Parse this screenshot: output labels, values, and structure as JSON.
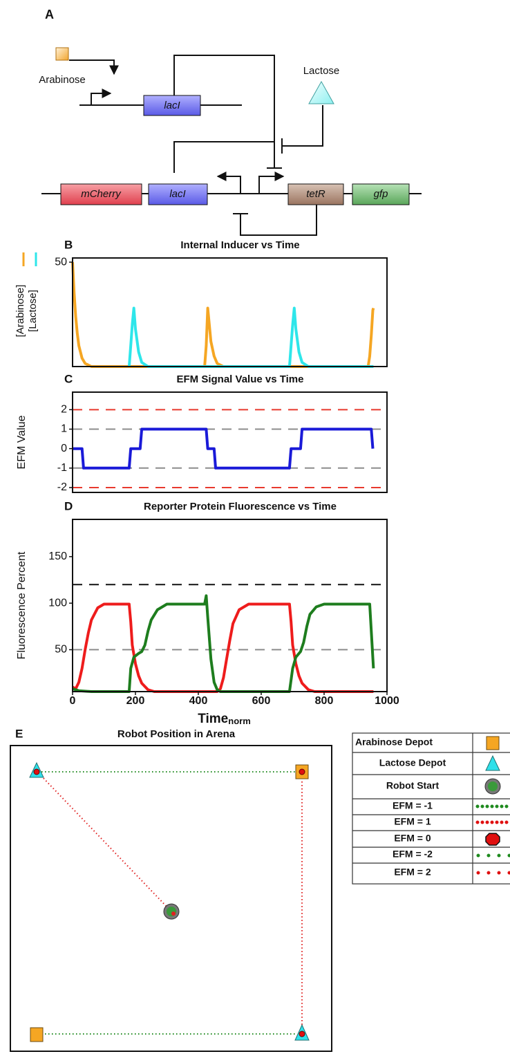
{
  "diagram": {
    "panel": "A",
    "arabinose": "Arabinose",
    "lactose": "Lactose",
    "genes_top": [
      "lacI"
    ],
    "genes_bottom": [
      "mCherry",
      "lacI",
      "tetR",
      "gfp"
    ]
  },
  "chart_data": [
    {
      "type": "line",
      "panel": "B",
      "title": "Internal Inducer vs Time",
      "xlim": [
        0,
        1000
      ],
      "ylim": [
        0,
        52
      ],
      "yticks": [
        50
      ],
      "legend": "left",
      "series": [
        {
          "name": "[Arabinose]",
          "color": "#f5a623",
          "x": [
            0,
            5,
            10,
            15,
            20,
            30,
            40,
            60,
            420,
            425,
            430,
            435,
            440,
            450,
            460,
            480,
            940,
            945,
            950,
            955,
            957
          ],
          "values": [
            50,
            35,
            24,
            16,
            10,
            4,
            1.5,
            0,
            0,
            10,
            28,
            20,
            12,
            5,
            1.5,
            0,
            0,
            5,
            15,
            27,
            28
          ]
        },
        {
          "name": "[Lactose]",
          "color": "#2ee6ea",
          "x": [
            180,
            185,
            190,
            195,
            200,
            210,
            220,
            240,
            690,
            695,
            700,
            705,
            710,
            720,
            730,
            750,
            957
          ],
          "values": [
            0,
            10,
            20,
            28,
            18,
            7,
            2,
            0,
            0,
            10,
            20,
            28,
            18,
            7,
            2,
            0,
            0
          ]
        }
      ]
    },
    {
      "type": "line",
      "panel": "C",
      "title": "EFM Signal Value vs Time",
      "y_label": "EFM Value",
      "xlim": [
        0,
        1000
      ],
      "ylim": [
        -2.25,
        2.9
      ],
      "yticks": [
        2,
        1,
        0,
        -1,
        -2
      ],
      "hlines": [
        {
          "value": 2,
          "color": "#e8392e"
        },
        {
          "value": 1,
          "color": "#8c8c8c"
        },
        {
          "value": -1,
          "color": "#8c8c8c"
        },
        {
          "value": -2,
          "color": "#e8392e"
        }
      ],
      "series": [
        {
          "color": "#1a1ad8",
          "x": [
            0,
            30,
            35,
            180,
            185,
            215,
            220,
            425,
            430,
            450,
            455,
            690,
            695,
            725,
            730,
            950,
            955
          ],
          "values": [
            0,
            0,
            -1,
            -1,
            0,
            0,
            1,
            1,
            0,
            0,
            -1,
            -1,
            0,
            0,
            1,
            1,
            0
          ]
        }
      ]
    },
    {
      "type": "line",
      "panel": "D",
      "title": "Reporter Protein Fluorescence vs Time",
      "y_label": "Fluorescence Percent",
      "x_label": "Time",
      "x_label_sub": "norm",
      "xlim": [
        0,
        1000
      ],
      "ylim": [
        5,
        190
      ],
      "xticks": [
        0,
        200,
        400,
        600,
        800,
        1000
      ],
      "yticks": [
        50,
        100,
        150
      ],
      "hlines": [
        {
          "value": 120,
          "color": "#111111"
        },
        {
          "value": 50,
          "color": "#8c8c8c"
        }
      ],
      "series": [
        {
          "color": "#ee1c1c",
          "x": [
            0,
            10,
            20,
            30,
            40,
            50,
            60,
            80,
            100,
            180,
            185,
            190,
            200,
            210,
            220,
            240,
            260,
            460,
            470,
            480,
            490,
            500,
            510,
            530,
            560,
            690,
            695,
            700,
            710,
            720,
            730,
            750,
            770,
            957
          ],
          "values": [
            10,
            8,
            15,
            30,
            50,
            68,
            82,
            95,
            99,
            99,
            80,
            55,
            35,
            22,
            14,
            7,
            5,
            5,
            8,
            20,
            40,
            60,
            78,
            93,
            99,
            99,
            80,
            55,
            35,
            22,
            14,
            7,
            5,
            5
          ]
        },
        {
          "color": "#1e7d1e",
          "x": [
            0,
            20,
            60,
            180,
            185,
            195,
            210,
            220,
            230,
            240,
            250,
            270,
            300,
            420,
            425,
            430,
            440,
            450,
            460,
            470,
            690,
            700,
            710,
            725,
            735,
            745,
            755,
            775,
            800,
            945,
            957
          ],
          "values": [
            8,
            6,
            5,
            5,
            30,
            42,
            46,
            48,
            55,
            70,
            82,
            93,
            99,
            99,
            108,
            85,
            40,
            15,
            7,
            5,
            5,
            30,
            42,
            48,
            58,
            75,
            88,
            96,
            99,
            99,
            30
          ]
        }
      ]
    }
  ],
  "arena": {
    "panel": "E",
    "title": "Robot Position in Arena",
    "legend_rows": [
      "Arabinose Depot",
      "Lactose Depot",
      "Robot Start",
      "EFM = -1",
      "EFM =  1",
      "EFM =  0",
      "EFM = -2",
      "EFM =  2"
    ]
  }
}
